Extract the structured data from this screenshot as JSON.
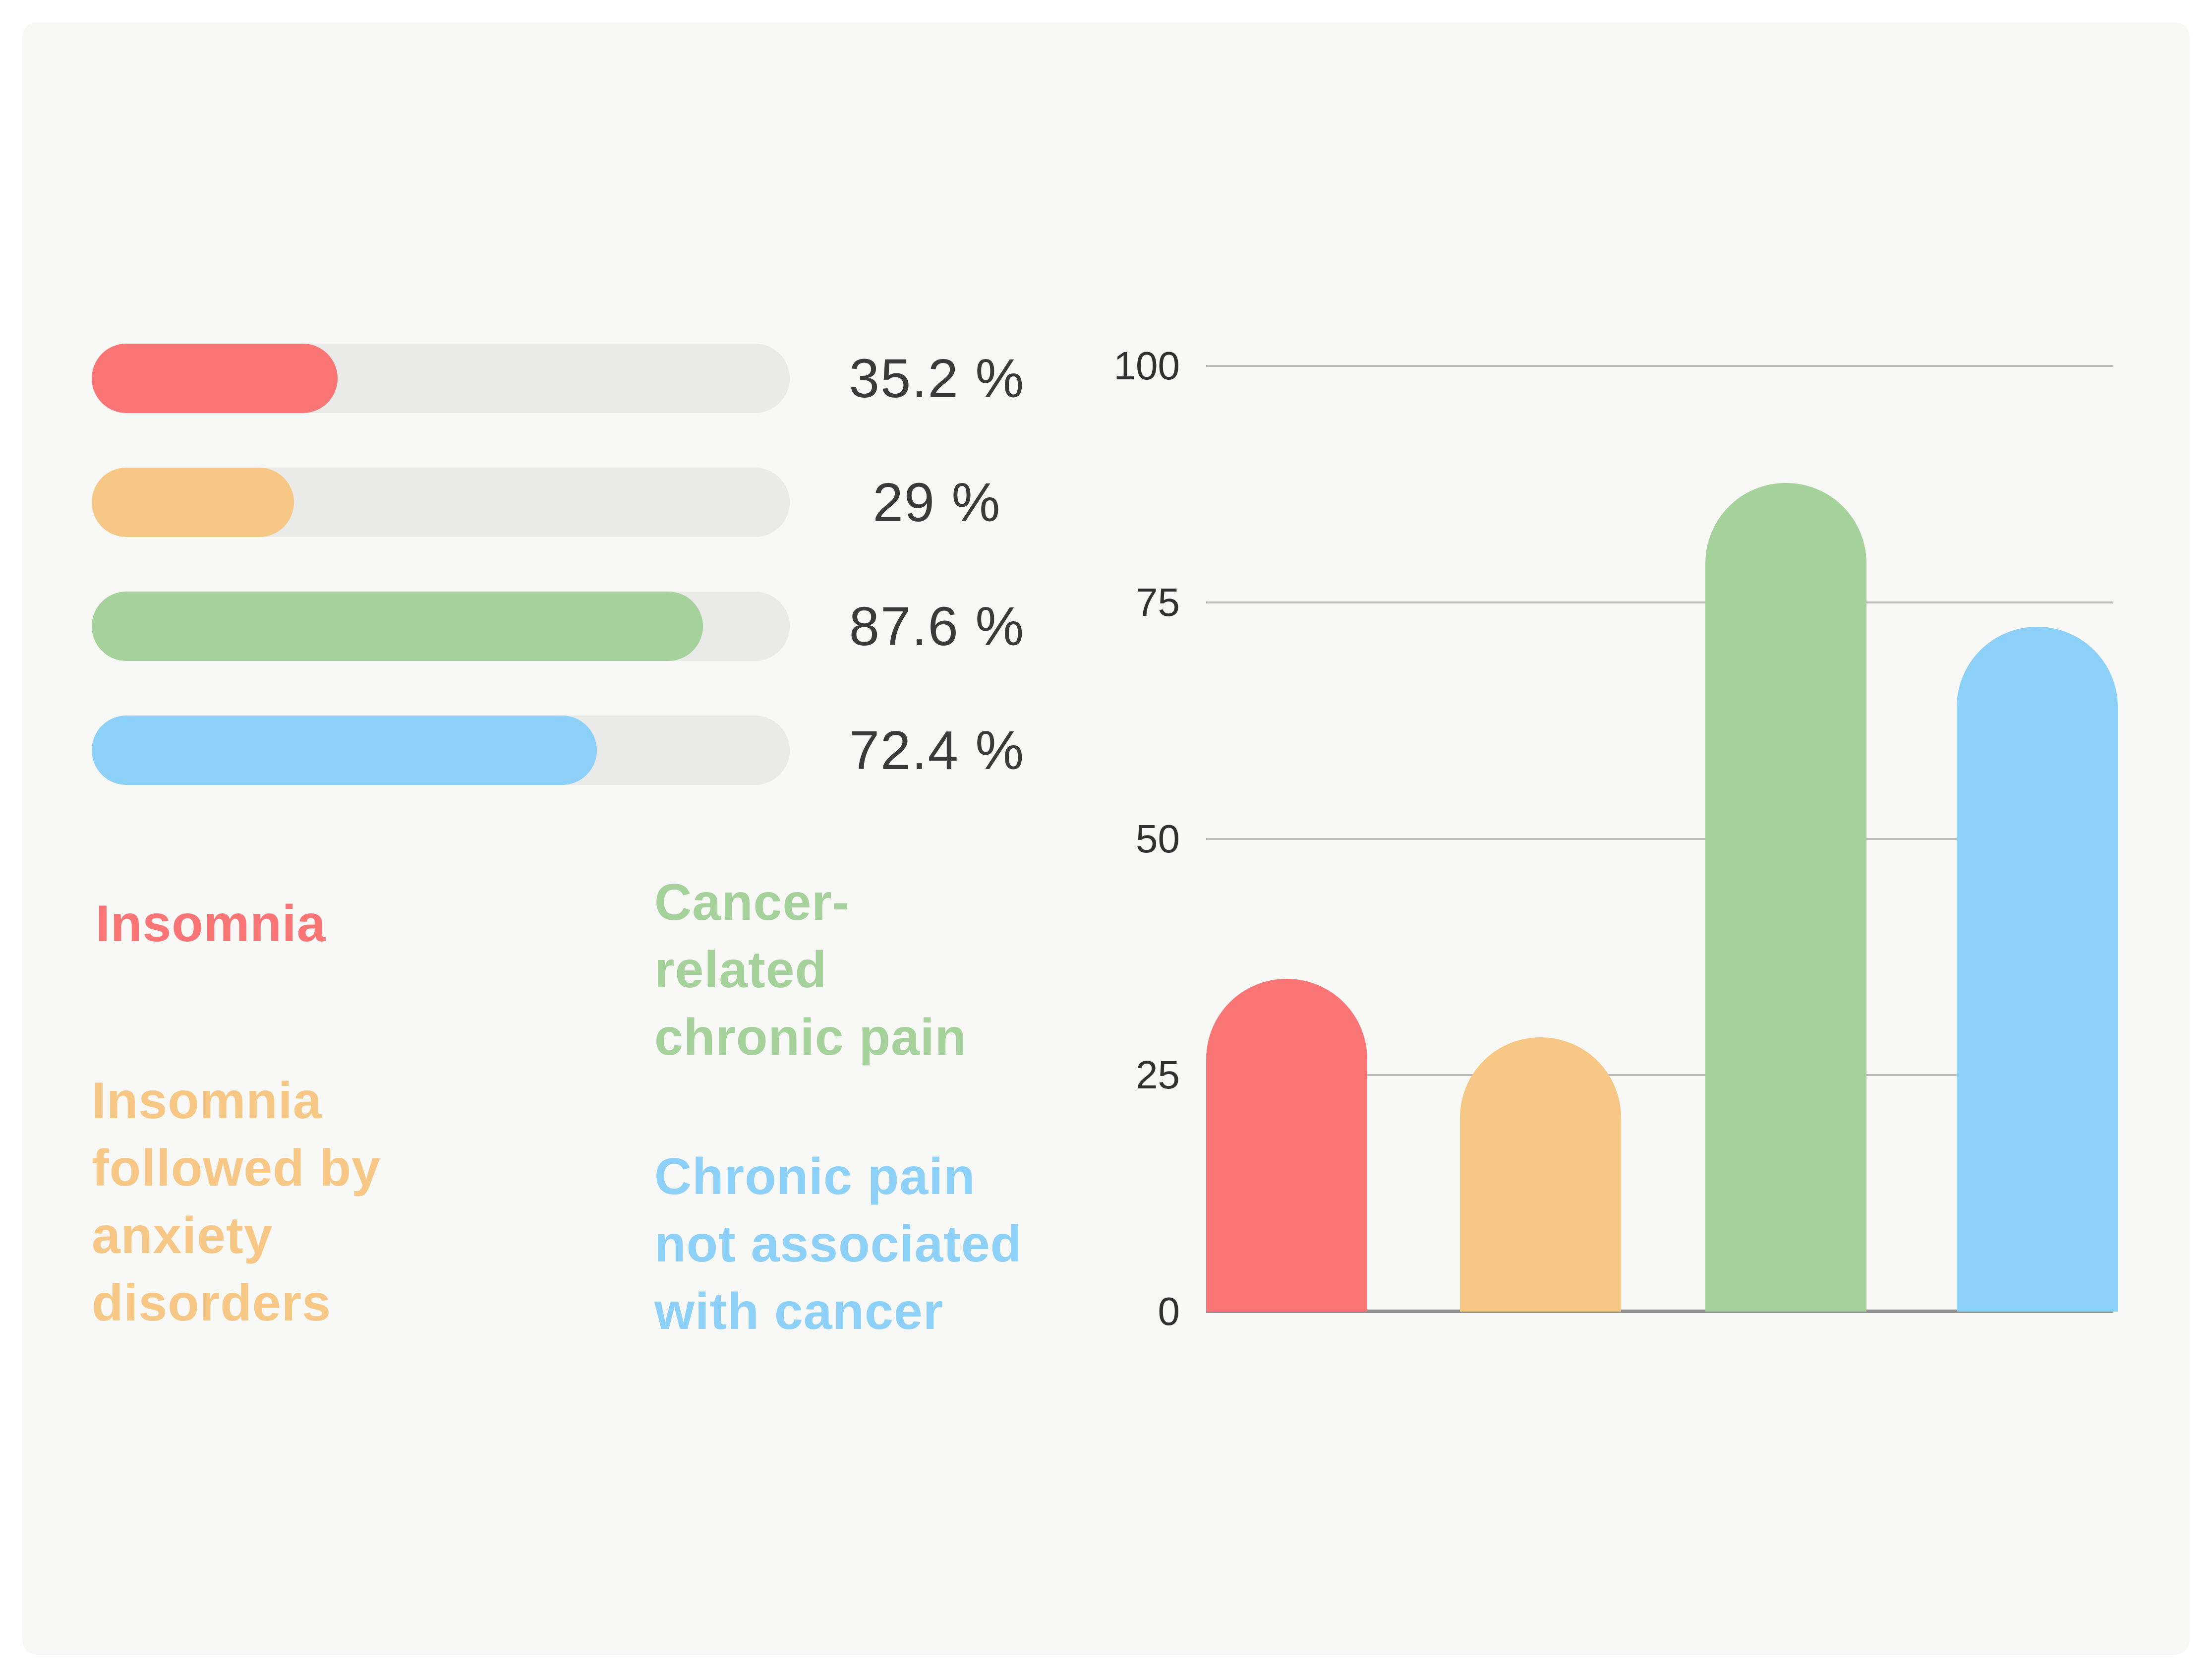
{
  "page": {
    "bg": "#ffffff",
    "canvas_bg": "#f8f8f6"
  },
  "colors": {
    "insomnia": "#fa7575",
    "insomnia_anxiety": "#f7c786",
    "cancer_pain": "#a5d29a",
    "noncancer_pain": "#8dd0f8",
    "track": "#eaeae9",
    "gridline": "#bcbcbc",
    "axis_line": "#8f8f8f",
    "value_text": "#3a3a3a",
    "tick_text": "#303030"
  },
  "progress_panel": {
    "items": [
      {
        "label": "Insomnia",
        "pct": 35.2,
        "value_label": "35.2 %",
        "color": "#fa7575"
      },
      {
        "label": "Insomnia followed by anxiety disorders",
        "pct": 29,
        "value_label": "29 %",
        "color": "#f7c786"
      },
      {
        "label": "Cancer-related chronic pain",
        "pct": 87.6,
        "value_label": "87.6 %",
        "color": "#a5d29a"
      },
      {
        "label": "Chronic pain not associated with cancer",
        "pct": 72.4,
        "value_label": "72.4 %",
        "color": "#8dd0f8"
      }
    ]
  },
  "legend": {
    "items": [
      {
        "name": "insomnia",
        "lines": "Insomnia",
        "color": "#fa7575"
      },
      {
        "name": "insomnia-anxiety",
        "lines": "Insomnia\nfollowed by\nanxiety\ndisorders",
        "color": "#f7c786"
      },
      {
        "name": "cancer-related-pain",
        "lines": "Cancer-\nrelated\nchronic pain",
        "color": "#a5d29a"
      },
      {
        "name": "noncancer-pain",
        "lines": "Chronic pain\nnot associated\nwith cancer",
        "color": "#8dd0f8"
      }
    ]
  },
  "chart_data": {
    "type": "bar",
    "title": "",
    "xlabel": "",
    "ylabel": "",
    "categories": [
      "Insomnia",
      "Insomnia followed by anxiety disorders",
      "Cancer-related chronic pain",
      "Chronic pain not associated with cancer"
    ],
    "values": [
      35.2,
      29,
      87.6,
      72.4
    ],
    "value_labels": [
      "35.2 %",
      "29 %",
      "87.6 %",
      "72.4 %"
    ],
    "bar_colors": [
      "#fa7575",
      "#f7c786",
      "#a5d29a",
      "#8dd0f8"
    ],
    "ylim": [
      0,
      100
    ],
    "yticks": [
      100,
      75,
      50,
      25,
      0
    ],
    "grid": true,
    "legend_position": "left"
  }
}
